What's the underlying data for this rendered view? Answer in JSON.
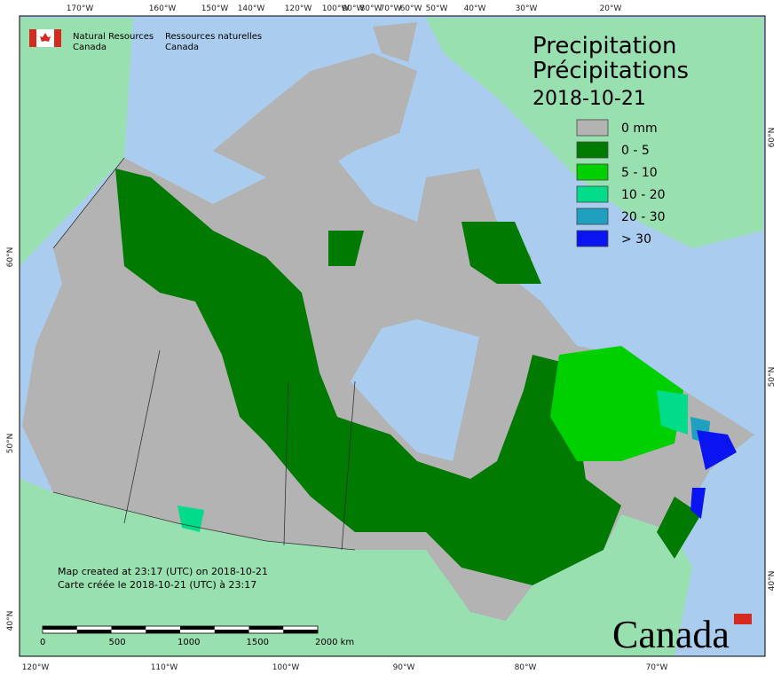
{
  "header": {
    "en_line1": "Natural Resources",
    "en_line2": "Canada",
    "fr_line1": "Ressources naturelles",
    "fr_line2": "Canada"
  },
  "title": {
    "line1": "Precipitation",
    "line2": "Précipitations",
    "date": "2018-10-21"
  },
  "legend": [
    {
      "label": "0 mm",
      "color": "#b3b3b3"
    },
    {
      "label": "0 - 5",
      "color": "#007a00"
    },
    {
      "label": "5 - 10",
      "color": "#00d000"
    },
    {
      "label": "10 - 20",
      "color": "#00dc8a"
    },
    {
      "label": "20 - 30",
      "color": "#1fa0c0"
    },
    {
      "label": "> 30",
      "color": "#0a14f0"
    }
  ],
  "footer": {
    "line1": "Map created at 23:17 (UTC) on 2018-10-21",
    "line2": "Carte créée le 2018-10-21 (UTC) à 23:17"
  },
  "scale": {
    "ticks": [
      "0",
      "500",
      "1000",
      "1500",
      "2000 km"
    ]
  },
  "wordmark": "Canada",
  "graticule": {
    "top": [
      "170°W",
      "160°W",
      "150°W",
      "140°W",
      "120°W",
      "100°W",
      "90°W",
      "80°W",
      "70°W",
      "60°W",
      "50°W",
      "40°W",
      "30°W",
      "20°W"
    ],
    "bottom": [
      "120°W",
      "110°W",
      "100°W",
      "90°W",
      "80°W",
      "70°W"
    ],
    "left": [
      "60°N",
      "50°N",
      "40°N"
    ],
    "right": [
      "60°N",
      "50°N",
      "40°N"
    ]
  }
}
